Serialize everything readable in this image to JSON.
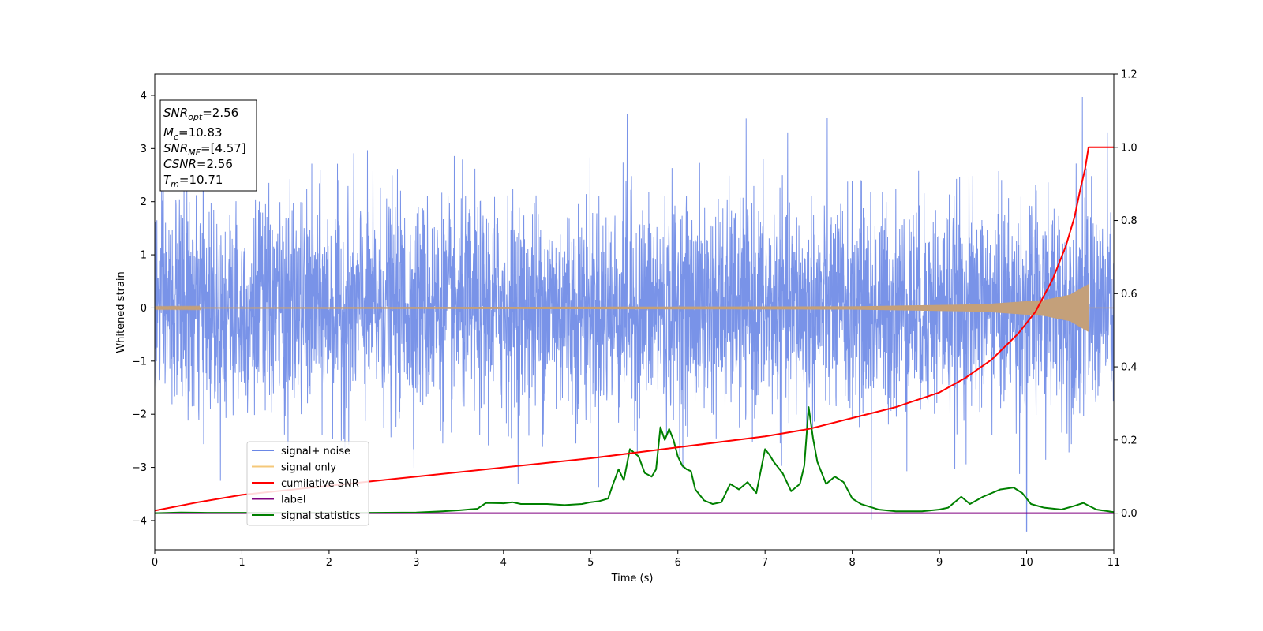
{
  "chart_data": {
    "type": "line",
    "xlabel": "Time (s)",
    "ylabel": "Whitened strain",
    "xlim": [
      0,
      11
    ],
    "ylim": [
      -4.55,
      4.4
    ],
    "y2lim": [
      -0.1,
      1.2
    ],
    "xticks": [
      0,
      1,
      2,
      3,
      4,
      5,
      6,
      7,
      8,
      9,
      10,
      11
    ],
    "yticks": [
      -4,
      -3,
      -2,
      -1,
      0,
      1,
      2,
      3,
      4
    ],
    "y2ticks": [
      0.0,
      0.2,
      0.4,
      0.6,
      0.8,
      1.0,
      1.2
    ],
    "grid": false,
    "legend_position": "lower-left",
    "colors": {
      "signal_noise": "#6a87e6",
      "signal_only": "#f5c87a",
      "signal_only_merged": "#c4a07a",
      "cumulative_snr": "#ff0000",
      "label": "#800080",
      "signal_statistics": "#008000"
    },
    "series": [
      {
        "name": "signal+ noise",
        "axis": "left",
        "description_points": 4000,
        "x_range": [
          0,
          11
        ],
        "typical_amplitude": 1.0,
        "extremes": [
          {
            "x": 10.64,
            "y": 3.97
          },
          {
            "x": 10.0,
            "y": -4.2
          },
          {
            "x": 5.42,
            "y": 3.65
          },
          {
            "x": 8.22,
            "y": -3.98
          }
        ]
      },
      {
        "name": "signal only",
        "axis": "left",
        "x_range": [
          0,
          10.71
        ],
        "envelope": [
          {
            "x": 0,
            "a": 0.01
          },
          {
            "x": 8.0,
            "a": 0.03
          },
          {
            "x": 9.5,
            "a": 0.07
          },
          {
            "x": 10.2,
            "a": 0.15
          },
          {
            "x": 10.5,
            "a": 0.25
          },
          {
            "x": 10.71,
            "a": 0.45
          }
        ]
      },
      {
        "name": "cumilative SNR",
        "axis": "right",
        "x": [
          0,
          0.5,
          1,
          2,
          3,
          4,
          5,
          6,
          7,
          7.5,
          8,
          8.5,
          9,
          9.3,
          9.6,
          9.9,
          10.1,
          10.3,
          10.45,
          10.55,
          10.62,
          10.67,
          10.71,
          11
        ],
        "values": [
          0.007,
          0.03,
          0.05,
          0.075,
          0.1,
          0.125,
          0.15,
          0.18,
          0.21,
          0.23,
          0.26,
          0.29,
          0.33,
          0.37,
          0.42,
          0.49,
          0.55,
          0.64,
          0.73,
          0.81,
          0.89,
          0.94,
          1.0,
          1.0
        ]
      },
      {
        "name": "label",
        "axis": "right",
        "x": [
          0,
          11
        ],
        "values": [
          0.0,
          0.0
        ]
      },
      {
        "name": "signal statistics",
        "axis": "right",
        "x": [
          0,
          0.3,
          0.6,
          1.0,
          1.5,
          2.0,
          2.5,
          3.0,
          3.3,
          3.5,
          3.7,
          3.8,
          4.0,
          4.1,
          4.2,
          4.5,
          4.7,
          4.9,
          5.0,
          5.1,
          5.2,
          5.25,
          5.32,
          5.38,
          5.45,
          5.5,
          5.55,
          5.62,
          5.7,
          5.75,
          5.8,
          5.85,
          5.9,
          5.95,
          6.0,
          6.05,
          6.1,
          6.15,
          6.2,
          6.3,
          6.4,
          6.5,
          6.6,
          6.7,
          6.8,
          6.9,
          7.0,
          7.05,
          7.1,
          7.2,
          7.3,
          7.4,
          7.45,
          7.5,
          7.55,
          7.6,
          7.7,
          7.8,
          7.9,
          8.0,
          8.1,
          8.3,
          8.5,
          8.8,
          9.0,
          9.1,
          9.25,
          9.35,
          9.5,
          9.7,
          9.85,
          9.95,
          10.05,
          10.2,
          10.4,
          10.55,
          10.65,
          10.8,
          11.0
        ],
        "values": [
          0.0,
          0.002,
          0.001,
          0.001,
          0.001,
          0.001,
          0.001,
          0.002,
          0.005,
          0.008,
          0.012,
          0.028,
          0.027,
          0.03,
          0.025,
          0.025,
          0.022,
          0.025,
          0.03,
          0.033,
          0.04,
          0.075,
          0.12,
          0.09,
          0.175,
          0.165,
          0.155,
          0.11,
          0.1,
          0.12,
          0.235,
          0.2,
          0.23,
          0.2,
          0.155,
          0.13,
          0.12,
          0.115,
          0.065,
          0.035,
          0.025,
          0.03,
          0.08,
          0.065,
          0.085,
          0.055,
          0.175,
          0.16,
          0.14,
          0.11,
          0.06,
          0.08,
          0.13,
          0.29,
          0.205,
          0.14,
          0.08,
          0.1,
          0.085,
          0.04,
          0.025,
          0.01,
          0.005,
          0.005,
          0.01,
          0.015,
          0.045,
          0.025,
          0.045,
          0.065,
          0.07,
          0.055,
          0.025,
          0.015,
          0.01,
          0.02,
          0.028,
          0.01,
          0.003
        ]
      }
    ],
    "info_box": {
      "snr_opt": "2.56",
      "mc": "10.83",
      "snr_mf": "[4.57]",
      "csnr": "2.56",
      "tm": "10.71"
    }
  }
}
